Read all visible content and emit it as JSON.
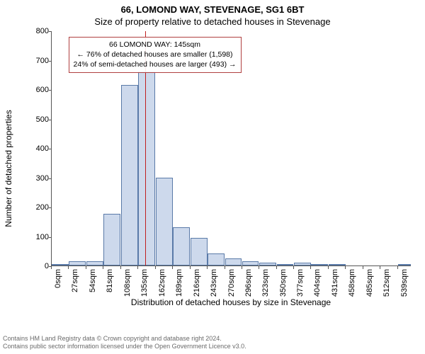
{
  "header": {
    "address": "66, LOMOND WAY, STEVENAGE, SG1 6BT",
    "subtitle": "Size of property relative to detached houses in Stevenage"
  },
  "chart": {
    "type": "histogram",
    "ylabel": "Number of detached properties",
    "xlabel": "Distribution of detached houses by size in Stevenage",
    "background_color": "#ffffff",
    "bar_fill": "#cdd9ec",
    "bar_stroke": "#5a7aa8",
    "axis_color": "#555555",
    "marker_line_color": "#c02020",
    "marker_x_value": 145,
    "ylim": [
      0,
      800
    ],
    "ytick_step": 100,
    "xtick_labels": [
      "0sqm",
      "27sqm",
      "54sqm",
      "81sqm",
      "108sqm",
      "135sqm",
      "162sqm",
      "189sqm",
      "216sqm",
      "243sqm",
      "270sqm",
      "296sqm",
      "323sqm",
      "350sqm",
      "377sqm",
      "404sqm",
      "431sqm",
      "458sqm",
      "485sqm",
      "512sqm",
      "539sqm"
    ],
    "xtick_values": [
      0,
      27,
      54,
      81,
      108,
      135,
      162,
      189,
      216,
      243,
      270,
      296,
      323,
      350,
      377,
      404,
      431,
      458,
      485,
      512,
      539
    ],
    "x_range": [
      0,
      560
    ],
    "bin_edges": [
      0,
      27,
      54,
      81,
      108,
      135,
      162,
      189,
      216,
      243,
      270,
      296,
      323,
      350,
      377,
      404,
      431,
      458,
      485,
      512,
      539,
      560
    ],
    "bin_counts": [
      5,
      15,
      15,
      175,
      615,
      660,
      300,
      130,
      95,
      40,
      25,
      15,
      10,
      5,
      10,
      5,
      3,
      0,
      0,
      0,
      3
    ],
    "label_fontsize": 12,
    "tick_fontsize": 11,
    "title_fontsize": 13
  },
  "annotation": {
    "line1": "66 LOMOND WAY: 145sqm",
    "line2": "← 76% of detached houses are smaller (1,598)",
    "line3": "24% of semi-detached houses are larger (493) →",
    "box_border": "#b04040"
  },
  "footer": {
    "line1": "Contains HM Land Registry data © Crown copyright and database right 2024.",
    "line2": "Contains public sector information licensed under the Open Government Licence v3.0."
  }
}
